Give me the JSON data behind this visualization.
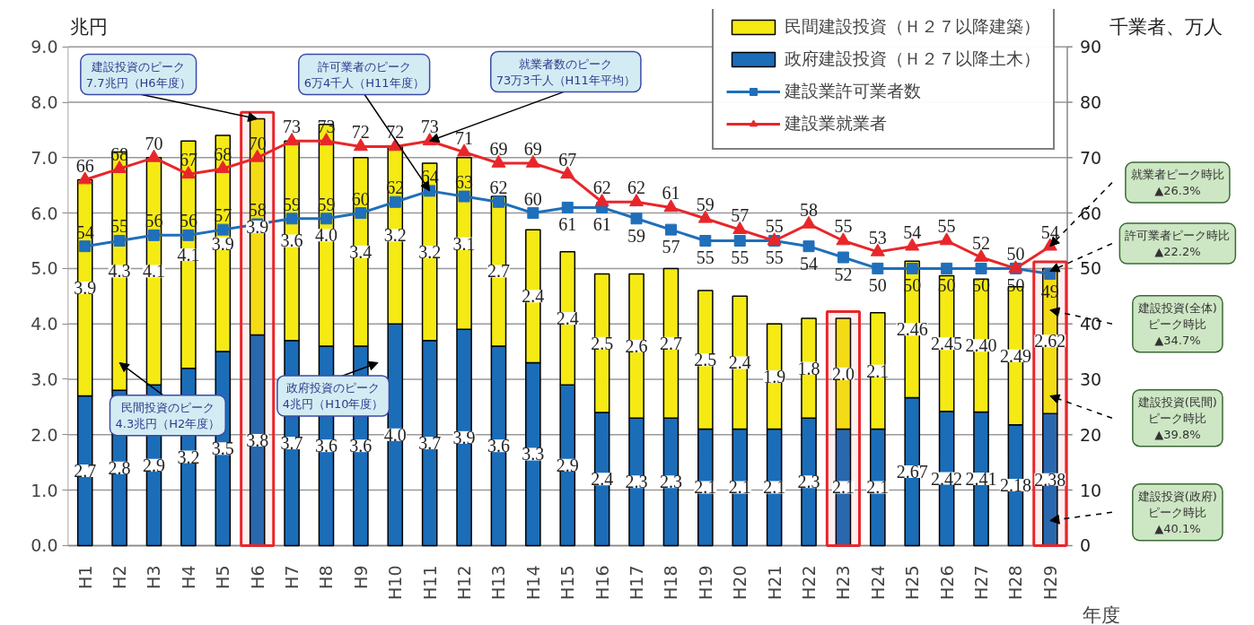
{
  "chart_data": {
    "type": "bar",
    "stacked": true,
    "ylabel": "兆円",
    "y2label": "千業者、万人",
    "xlabel": "年度",
    "categories": [
      "H1",
      "H2",
      "H3",
      "H4",
      "H5",
      "H6",
      "H7",
      "H8",
      "H9",
      "H10",
      "H11",
      "H12",
      "H13",
      "H14",
      "H15",
      "H16",
      "H17",
      "H18",
      "H19",
      "H20",
      "H21",
      "H22",
      "H23",
      "H24",
      "H25",
      "H26",
      "H27",
      "H28",
      "H29"
    ],
    "series": [
      {
        "name": "政府建設投資（Ｈ２７以降土木）",
        "color": "#1b6db8",
        "values": [
          2.7,
          2.8,
          2.9,
          3.2,
          3.5,
          3.8,
          3.7,
          3.6,
          3.6,
          4.0,
          3.7,
          3.9,
          3.6,
          3.3,
          2.9,
          2.4,
          2.3,
          2.3,
          2.1,
          2.1,
          2.1,
          2.3,
          2.1,
          2.1,
          2.67,
          2.42,
          2.41,
          2.18,
          2.38
        ],
        "value_labels": [
          "2.7",
          "2.8",
          "2.9",
          "3.2",
          "3.5",
          "3.8",
          "3.7",
          "3.6",
          "3.6",
          "4.0",
          "3.7",
          "3.9",
          "3.6",
          "3.3",
          "2.9",
          "2.4",
          "2.3",
          "2.3",
          "2.1",
          "2.1",
          "2.1",
          "2.3",
          "2.1",
          "2.1",
          "2.67",
          "2.42",
          "2.41",
          "2.18",
          "2.38"
        ]
      },
      {
        "name": "民間建設投資（Ｈ２７以降建築）",
        "color": "#f5ea14",
        "values": [
          3.9,
          4.3,
          4.1,
          4.1,
          3.9,
          3.9,
          3.6,
          4.0,
          3.4,
          3.2,
          3.2,
          3.1,
          2.7,
          2.4,
          2.4,
          2.5,
          2.6,
          2.7,
          2.5,
          2.4,
          1.9,
          1.8,
          2.0,
          2.1,
          2.46,
          2.45,
          2.4,
          2.49,
          2.62
        ],
        "value_labels": [
          "3.9",
          "4.3",
          "4.1",
          "4.1",
          "3.9",
          "3.9",
          "3.6",
          "4.0",
          "3.4",
          "3.2",
          "3.2",
          "3.1",
          "2.7",
          "2.4",
          "2.4",
          "2.5",
          "2.6",
          "2.7",
          "2.5",
          "2.4",
          "1.9",
          "1.8",
          "2.0",
          "2.1",
          "2.46",
          "2.45",
          "2.40",
          "2.49",
          "2.62"
        ]
      },
      {
        "name": "建設業許可業者数",
        "type": "line",
        "axis": "y2",
        "marker": "square",
        "color": "#1f6fba",
        "values": [
          54,
          55,
          56,
          56,
          57,
          58,
          59,
          59,
          60,
          62,
          64,
          63,
          62,
          60,
          61,
          61,
          59,
          57,
          55,
          55,
          55,
          54,
          52,
          50,
          50,
          50,
          50,
          50,
          49
        ]
      },
      {
        "name": "建設業就業者",
        "type": "line",
        "axis": "y2",
        "marker": "triangle",
        "color": "#e8262a",
        "values": [
          66,
          68,
          70,
          67,
          68,
          70,
          73,
          73,
          72,
          72,
          73,
          71,
          69,
          69,
          67,
          62,
          62,
          61,
          59,
          57,
          55,
          58,
          55,
          53,
          54,
          55,
          52,
          50,
          54
        ]
      }
    ],
    "ylim": [
      0,
      9
    ],
    "yticks": [
      {
        "value": 0,
        "label": "0.0"
      },
      {
        "value": 1,
        "label": "1.0"
      },
      {
        "value": 2,
        "label": "2.0"
      },
      {
        "value": 3,
        "label": "3.0"
      },
      {
        "value": 4,
        "label": "4.0"
      },
      {
        "value": 5,
        "label": "5.0"
      },
      {
        "value": 6,
        "label": "6.0"
      },
      {
        "value": 7,
        "label": "7.0"
      },
      {
        "value": 8,
        "label": "8.0"
      },
      {
        "value": 9,
        "label": "9.0"
      }
    ],
    "y2lim": [
      0,
      90
    ],
    "y2ticks": [
      0,
      10,
      20,
      30,
      40,
      50,
      60,
      70,
      80,
      90
    ],
    "grid": "y",
    "legend": "top right",
    "data_labels": true,
    "bands": [
      {
        "axis": "x",
        "from": "H6",
        "to": "H6",
        "color": "#e8262a"
      },
      {
        "axis": "x",
        "from": "H23",
        "to": "H23",
        "color": "#e8262a"
      },
      {
        "axis": "x",
        "from": "H29",
        "to": "H29",
        "color": "#e8262a"
      }
    ],
    "annotations": [
      {
        "text": "建設投資のピーク\n7.7兆円（H6年度）",
        "x": "H6",
        "y": 7.7
      },
      {
        "text": "許可業者のピーク\n6万4千人（H11年度）",
        "x": "H11",
        "y": 6.4
      },
      {
        "text": "就業者数のピーク\n73万3千人（H11年平均）",
        "x": "H11",
        "y": 7.3
      },
      "民間投資のピーク\n4.3兆円（H2年度）",
      "政府投資のピーク\n4兆円（H10年度）",
      "就業者ピーク時比\n▲26.3%",
      {
        "text": "許可業者ピーク時比\n▲22.2%",
        "x": "H29",
        "y": 4.95
      },
      "建設投資(全体)\nピーク時比\n▲34.7%",
      "建設投資(民間)\nピーク時比\n▲39.8%",
      "建設投資(政府)\nピーク時比\n▲40.1%"
    ]
  }
}
